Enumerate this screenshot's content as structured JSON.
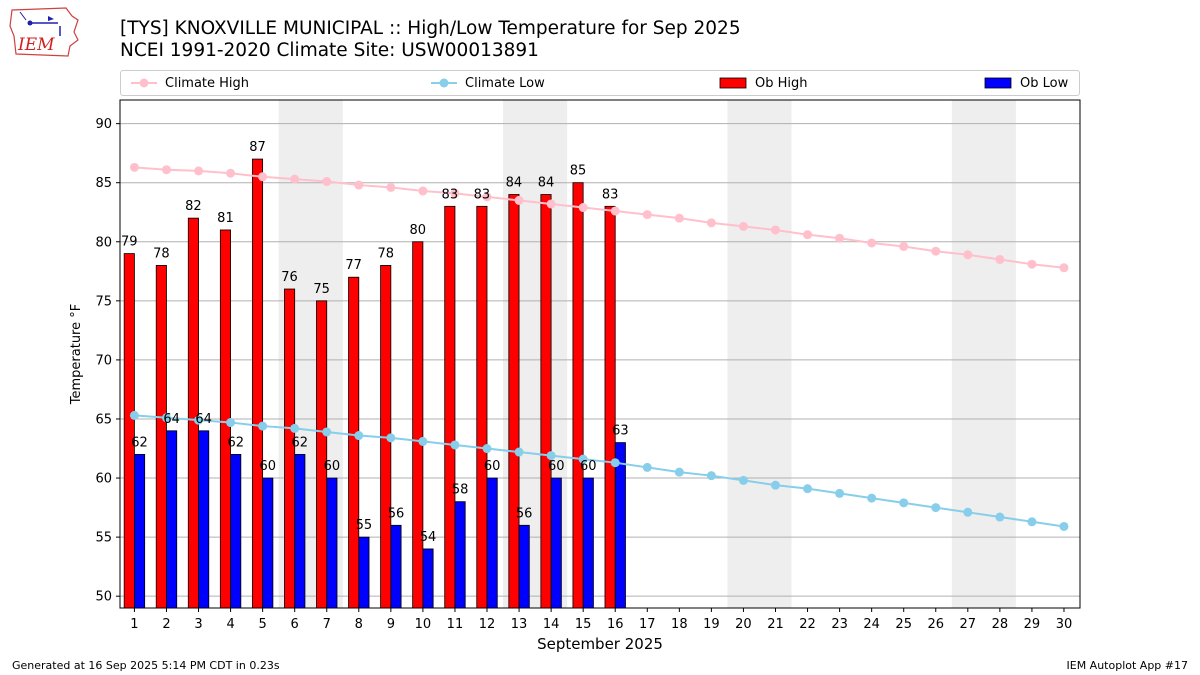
{
  "logo": {
    "text": "IEM",
    "icon": "iem-state-map-logo"
  },
  "header": {
    "title_line1": "[TYS] KNOXVILLE MUNICIPAL :: High/Low Temperature for Sep 2025",
    "title_line2": "NCEI 1991-2020 Climate Site: USW00013891"
  },
  "legend": {
    "climate_high": "Climate High",
    "climate_low": "Climate Low",
    "ob_high": "Ob High",
    "ob_low": "Ob Low"
  },
  "footer": {
    "generated": "Generated at 16 Sep 2025 5:14 PM CDT in 0.23s",
    "app": "IEM Autoplot App #17"
  },
  "colors": {
    "ob_high": "#ff0000",
    "ob_low": "#0000ff",
    "climate_high": "#ffc0cb",
    "climate_low": "#87ceeb",
    "weekend_shade": "#eeeeee",
    "grid": "#b0b0b0"
  },
  "chart_data": {
    "type": "bar",
    "xlabel": "September 2025",
    "ylabel": "Temperature °F",
    "ylim": [
      49,
      92
    ],
    "yticks": [
      50,
      55,
      60,
      65,
      70,
      75,
      80,
      85,
      90
    ],
    "grid": true,
    "legend_placement": "top",
    "days": [
      1,
      2,
      3,
      4,
      5,
      6,
      7,
      8,
      9,
      10,
      11,
      12,
      13,
      14,
      15,
      16,
      17,
      18,
      19,
      20,
      21,
      22,
      23,
      24,
      25,
      26,
      27,
      28,
      29,
      30
    ],
    "weekend_shading": [
      [
        6,
        7
      ],
      [
        13,
        14
      ],
      [
        20,
        21
      ],
      [
        27,
        28
      ]
    ],
    "series": [
      {
        "name": "Ob High",
        "kind": "bar",
        "values": [
          79,
          78,
          82,
          81,
          87,
          76,
          75,
          77,
          78,
          80,
          83,
          83,
          84,
          84,
          85,
          83
        ]
      },
      {
        "name": "Ob Low",
        "kind": "bar",
        "values": [
          62,
          64,
          64,
          62,
          60,
          62,
          60,
          55,
          56,
          54,
          58,
          60,
          56,
          60,
          60,
          63
        ]
      },
      {
        "name": "Climate High",
        "kind": "line",
        "values": [
          86.3,
          86.1,
          86.0,
          85.8,
          85.5,
          85.3,
          85.1,
          84.8,
          84.6,
          84.3,
          84.1,
          83.8,
          83.5,
          83.2,
          82.9,
          82.6,
          82.3,
          82.0,
          81.6,
          81.3,
          81.0,
          80.6,
          80.3,
          79.9,
          79.6,
          79.2,
          78.9,
          78.5,
          78.1,
          77.8
        ]
      },
      {
        "name": "Climate Low",
        "kind": "line",
        "values": [
          65.3,
          65.1,
          64.9,
          64.7,
          64.4,
          64.2,
          63.9,
          63.6,
          63.4,
          63.1,
          62.8,
          62.5,
          62.2,
          61.9,
          61.6,
          61.3,
          60.9,
          60.5,
          60.2,
          59.8,
          59.4,
          59.1,
          58.7,
          58.3,
          57.9,
          57.5,
          57.1,
          56.7,
          56.3,
          55.9
        ]
      }
    ]
  }
}
